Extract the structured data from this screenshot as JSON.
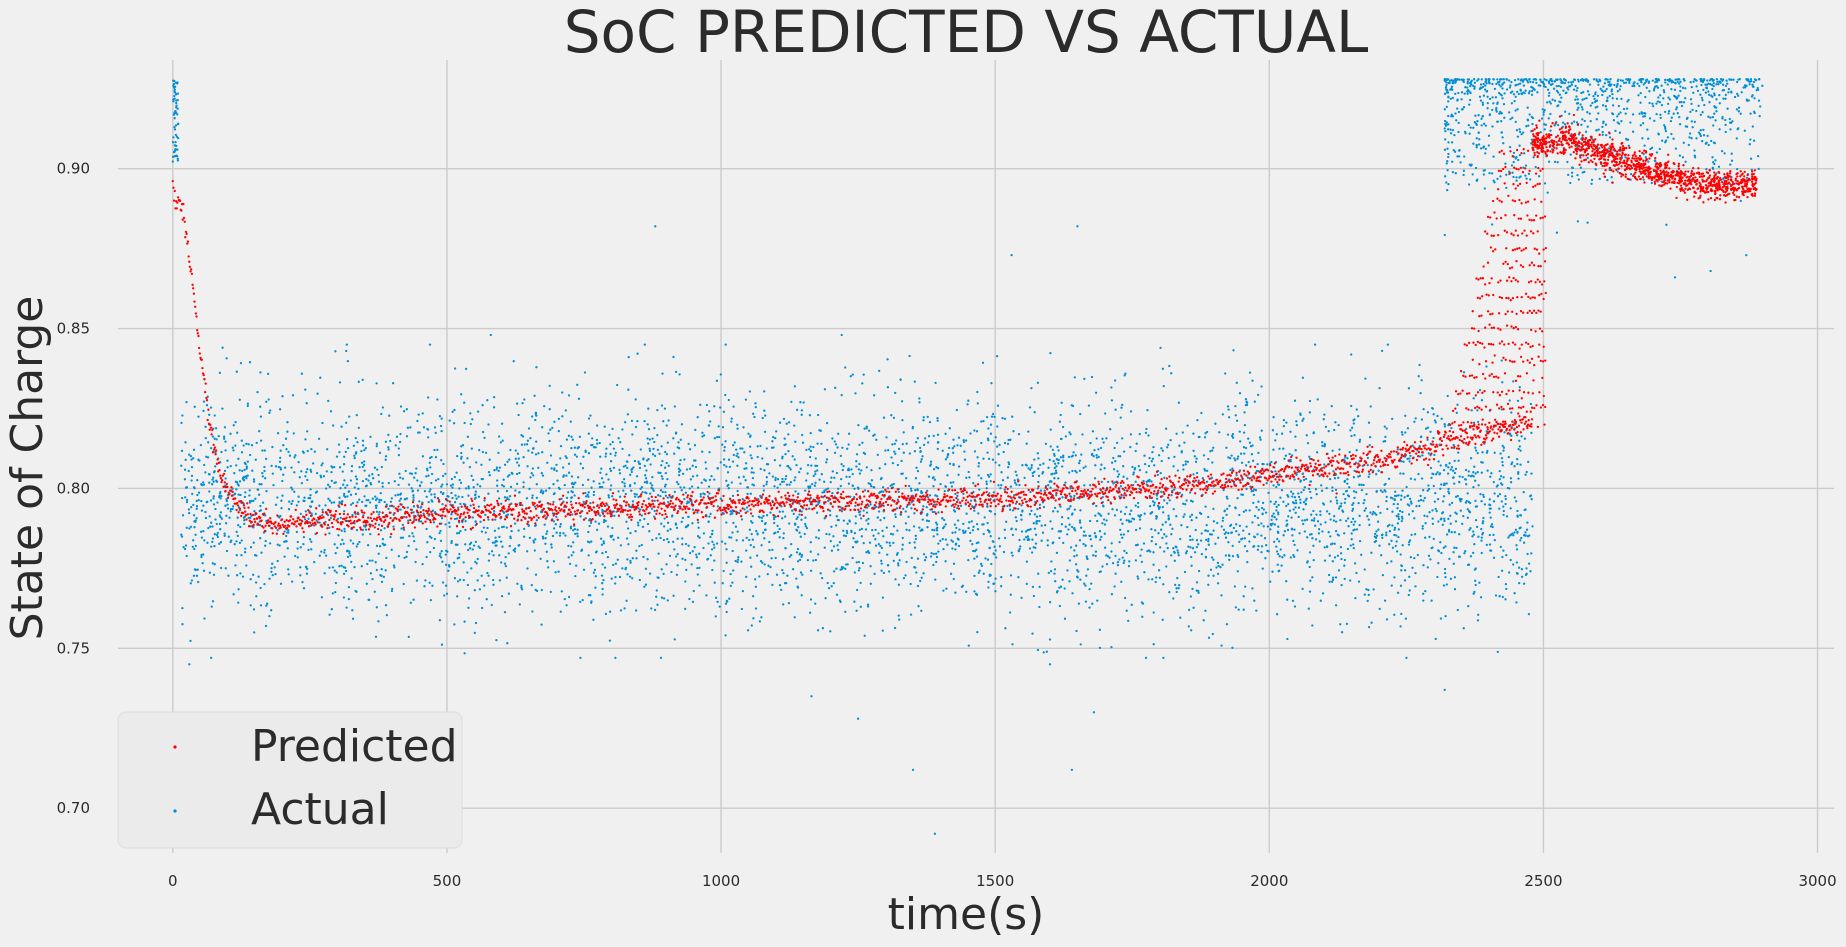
{
  "chart_data": {
    "type": "scatter",
    "title": "SoC PREDICTED VS ACTUAL",
    "xlabel": "time(s)",
    "ylabel": "State of Charge",
    "xlim": [
      -100,
      3030
    ],
    "ylim": [
      0.686,
      0.934
    ],
    "xticks": [
      0,
      500,
      1000,
      1500,
      2000,
      2500,
      3000
    ],
    "xtick_labels": [
      "0",
      "500",
      "1000",
      "1500",
      "2000",
      "2500",
      "3000"
    ],
    "yticks": [
      0.7,
      0.75,
      0.8,
      0.85,
      0.9
    ],
    "ytick_labels": [
      "0.70",
      "0.75",
      "0.80",
      "0.85",
      "0.90"
    ],
    "grid": true,
    "legend_position": "bottom-left",
    "colors": {
      "predicted": "#ff0000",
      "actual": "#008fd5",
      "background": "#f0f0f0",
      "grid": "#cbcbcb"
    },
    "series": [
      {
        "name": "Predicted",
        "color": "#ff0000",
        "trend": {
          "x": [
            0,
            10,
            20,
            30,
            40,
            50,
            60,
            70,
            80,
            90,
            100,
            120,
            150,
            200,
            300,
            500,
            1000,
            1500,
            1800,
            2000,
            2200,
            2300,
            2350,
            2400,
            2450,
            2480
          ],
          "y": [
            0.893,
            0.89,
            0.884,
            0.872,
            0.858,
            0.843,
            0.829,
            0.817,
            0.809,
            0.803,
            0.799,
            0.794,
            0.79,
            0.789,
            0.79,
            0.792,
            0.795,
            0.797,
            0.8,
            0.804,
            0.809,
            0.813,
            0.816,
            0.818,
            0.82,
            0.821
          ]
        },
        "ramp": {
          "x_range": [
            2330,
            2510
          ],
          "y_range": [
            0.82,
            0.905
          ]
        },
        "decay": {
          "x": [
            2480,
            2550,
            2600,
            2700,
            2800,
            2890
          ],
          "y": [
            0.908,
            0.909,
            0.905,
            0.899,
            0.895,
            0.895
          ]
        }
      },
      {
        "name": "Actual",
        "color": "#008fd5",
        "initial_cluster": {
          "x_range": [
            0,
            10
          ],
          "y_range": [
            0.9,
            0.928
          ]
        },
        "main_band": {
          "x_range": [
            15,
            2480
          ],
          "y_center": 0.795,
          "y_spread": 0.03
        },
        "high_band": {
          "x_range": [
            2320,
            2900
          ],
          "y_range": [
            0.895,
            0.928
          ]
        },
        "outliers": [
          [
            880,
            0.882
          ],
          [
            1650,
            0.882
          ],
          [
            1530,
            0.873
          ],
          [
            1350,
            0.712
          ],
          [
            1390,
            0.692
          ],
          [
            1640,
            0.712
          ],
          [
            1680,
            0.73
          ],
          [
            1250,
            0.728
          ],
          [
            1165,
            0.735
          ],
          [
            2320,
            0.737
          ],
          [
            170,
            0.757
          ],
          [
            2870,
            0.873
          ],
          [
            30,
            0.745
          ],
          [
            1600,
            0.745
          ],
          [
            1220,
            0.848
          ],
          [
            580,
            0.848
          ],
          [
            2250,
            0.747
          ],
          [
            70,
            0.747
          ],
          [
            2805,
            0.868
          ],
          [
            2740,
            0.866
          ]
        ]
      }
    ]
  }
}
